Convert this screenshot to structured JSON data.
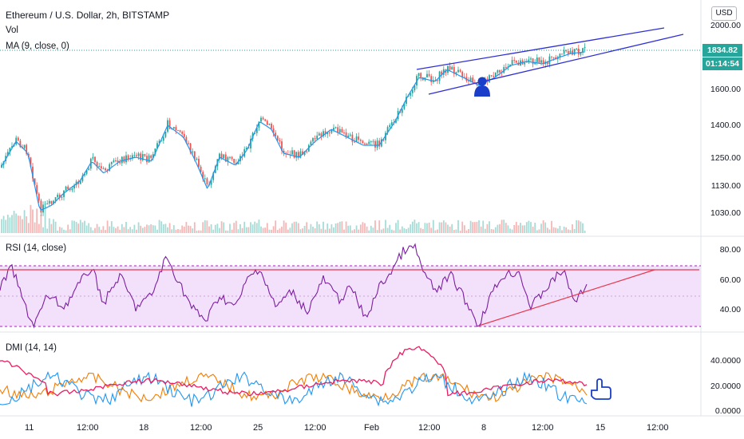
{
  "header": {
    "symbol_title": "Ethereum / U.S. Dollar, 2h, BITSTAMP",
    "vol_label": "Vol",
    "ma_label": "MA (9, close, 0)"
  },
  "currency_button": "USD",
  "price_axis": [
    "2000.00",
    "1600.00",
    "1400.00",
    "1250.00",
    "1130.00",
    "1030.00"
  ],
  "last_price_tag": "1834.82",
  "countdown_tag": "01:14:54",
  "rsi": {
    "label": "RSI (14, close)",
    "axis": [
      "80.00",
      "60.00",
      "40.00"
    ]
  },
  "dmi": {
    "label": "DMI (14, 14)",
    "axis": [
      "40.0000",
      "20.0000",
      "0.0000"
    ]
  },
  "time_axis": [
    "11",
    "12:00",
    "18",
    "12:00",
    "25",
    "12:00",
    "Feb",
    "12:00",
    "8",
    "12:00",
    "15",
    "12:00"
  ],
  "colors": {
    "up": "#26a69a",
    "down": "#ef5350",
    "ma": "#2196f3",
    "wedge": "#2f2fd6",
    "rsi": "#7b1fa2",
    "rsi_band": "#e1bee7",
    "dmi_plus": "#2196f3",
    "dmi_minus": "#f57c00",
    "adx": "#e91e63"
  },
  "icons": [
    "person-icon",
    "hand-pointer-icon"
  ]
}
